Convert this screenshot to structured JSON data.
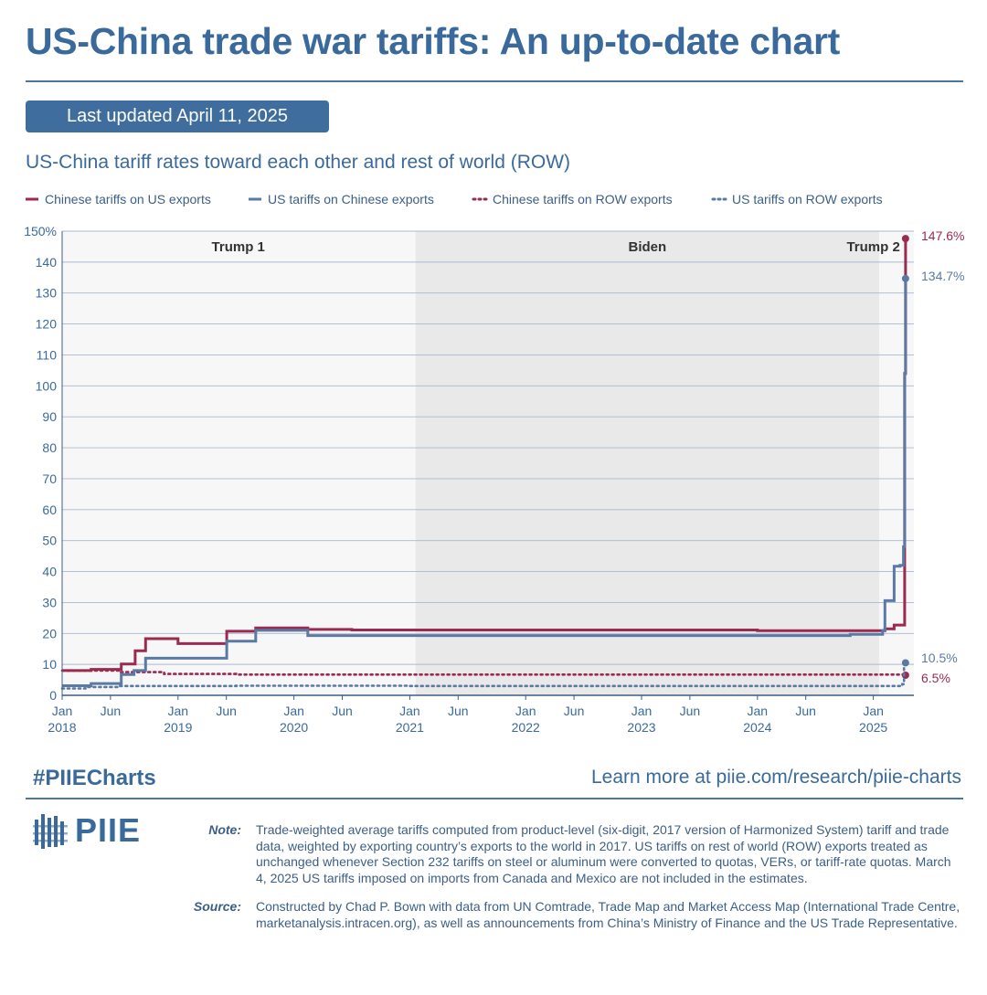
{
  "header": {
    "title": "US-China trade war tariffs: An up-to-date chart",
    "updated": "Last updated April 11, 2025",
    "subtitle": "US-China tariff rates toward each other and rest of world (ROW)"
  },
  "colors": {
    "cn_us": "#9b2a50",
    "us_cn": "#5a7aa4",
    "grid": "#a9b9d0",
    "shade": "#e9e9e9",
    "text": "#3a6a9b"
  },
  "chart_data": {
    "type": "line",
    "title": "US-China tariff rates toward each other and rest of world (ROW)",
    "ylim": [
      0,
      150
    ],
    "xlim": [
      "2018-01",
      "2025-04-11"
    ],
    "y_ticks": [
      {
        "value": 0,
        "label": "0"
      },
      {
        "value": 10,
        "label": "10"
      },
      {
        "value": 20,
        "label": "20"
      },
      {
        "value": 30,
        "label": "30"
      },
      {
        "value": 40,
        "label": "40"
      },
      {
        "value": 50,
        "label": "50"
      },
      {
        "value": 60,
        "label": "60"
      },
      {
        "value": 70,
        "label": "70"
      },
      {
        "value": 80,
        "label": "80"
      },
      {
        "value": 90,
        "label": "90"
      },
      {
        "value": 100,
        "label": "100"
      },
      {
        "value": 110,
        "label": "110"
      },
      {
        "value": 120,
        "label": "120"
      },
      {
        "value": 130,
        "label": "130"
      },
      {
        "value": 140,
        "label": "140"
      },
      {
        "value": 150,
        "label": "150%"
      }
    ],
    "x_ticks": [
      {
        "t": 2018.0,
        "label": "Jan",
        "year": "2018"
      },
      {
        "t": 2018.417,
        "label": "Jun"
      },
      {
        "t": 2019.0,
        "label": "Jan",
        "year": "2019"
      },
      {
        "t": 2019.417,
        "label": "Jun"
      },
      {
        "t": 2020.0,
        "label": "Jan",
        "year": "2020"
      },
      {
        "t": 2020.417,
        "label": "Jun"
      },
      {
        "t": 2021.0,
        "label": "Jan",
        "year": "2021"
      },
      {
        "t": 2021.417,
        "label": "Jun"
      },
      {
        "t": 2022.0,
        "label": "Jan",
        "year": "2022"
      },
      {
        "t": 2022.417,
        "label": "Jun"
      },
      {
        "t": 2023.0,
        "label": "Jan",
        "year": "2023"
      },
      {
        "t": 2023.417,
        "label": "Jun"
      },
      {
        "t": 2024.0,
        "label": "Jan",
        "year": "2024"
      },
      {
        "t": 2024.417,
        "label": "Jun"
      },
      {
        "t": 2025.0,
        "label": "Jan",
        "year": "2025"
      }
    ],
    "periods": [
      {
        "name": "Trump 1",
        "start": 2018.0,
        "end": 2021.05,
        "shaded": false
      },
      {
        "name": "Biden",
        "start": 2021.05,
        "end": 2025.05,
        "shaded": true
      },
      {
        "name": "Trump 2",
        "start": 2025.05,
        "end": 2025.28,
        "shaded": false
      }
    ],
    "series": [
      {
        "name": "Chinese tariffs on US exports",
        "color_key": "cn_us",
        "style": "solid",
        "end_label": "147.6%",
        "points": [
          [
            2018.0,
            8.0
          ],
          [
            2018.25,
            8.4
          ],
          [
            2018.51,
            10.1
          ],
          [
            2018.63,
            14.4
          ],
          [
            2018.72,
            18.3
          ],
          [
            2019.0,
            16.7
          ],
          [
            2019.42,
            20.7
          ],
          [
            2019.67,
            21.8
          ],
          [
            2020.12,
            21.3
          ],
          [
            2020.5,
            21.1
          ],
          [
            2024.0,
            20.9
          ],
          [
            2025.0,
            20.9
          ],
          [
            2025.1,
            21.5
          ],
          [
            2025.18,
            22.7
          ],
          [
            2025.27,
            104.0
          ],
          [
            2025.278,
            147.6
          ]
        ]
      },
      {
        "name": "US tariffs on Chinese exports",
        "color_key": "us_cn",
        "style": "solid",
        "end_label": "134.7%",
        "points": [
          [
            2018.0,
            3.1
          ],
          [
            2018.25,
            3.8
          ],
          [
            2018.51,
            6.7
          ],
          [
            2018.62,
            8.0
          ],
          [
            2018.72,
            12.0
          ],
          [
            2019.42,
            17.5
          ],
          [
            2019.67,
            21.0
          ],
          [
            2020.12,
            19.3
          ],
          [
            2024.75,
            19.3
          ],
          [
            2024.8,
            19.7
          ],
          [
            2025.08,
            20.9
          ],
          [
            2025.1,
            30.6
          ],
          [
            2025.18,
            41.7
          ],
          [
            2025.23,
            42.0
          ],
          [
            2025.26,
            48.0
          ],
          [
            2025.27,
            104.0
          ],
          [
            2025.278,
            134.7
          ]
        ]
      },
      {
        "name": "Chinese tariffs on ROW exports",
        "color_key": "cn_us",
        "style": "dotted",
        "end_label": "6.5%",
        "points": [
          [
            2018.0,
            8.0
          ],
          [
            2018.5,
            7.5
          ],
          [
            2018.88,
            6.9
          ],
          [
            2019.5,
            6.7
          ],
          [
            2025.278,
            6.5
          ]
        ]
      },
      {
        "name": "US tariffs on ROW exports",
        "color_key": "us_cn",
        "style": "dotted",
        "end_label": "10.5%",
        "points": [
          [
            2018.0,
            2.2
          ],
          [
            2018.2,
            2.7
          ],
          [
            2018.5,
            3.0
          ],
          [
            2019.5,
            3.1
          ],
          [
            2021.0,
            3.0
          ],
          [
            2025.0,
            3.0
          ],
          [
            2025.25,
            3.6
          ],
          [
            2025.265,
            10.5
          ],
          [
            2025.278,
            10.5
          ]
        ]
      }
    ]
  },
  "footer": {
    "hashtag": "#PIIECharts",
    "learn_more": "Learn more at piie.com/research/piie-charts",
    "logo_text": "PIIE",
    "note_label": "Note:",
    "note_text": "Trade-weighted average tariffs computed from product-level (six-digit, 2017 version of Harmonized System) tariff and trade data, weighted by exporting country’s exports to the world in 2017. US tariffs on rest of world (ROW) exports treated as unchanged whenever Section 232 tariffs on steel or aluminum were converted to quotas, VERs, or tariff-rate quotas. March 4, 2025 US tariffs imposed on imports from Canada and Mexico are not included in the estimates.",
    "source_label": "Source:",
    "source_text": "Constructed by Chad P. Bown with data from UN Comtrade, Trade Map and Market Access Map (International Trade Centre, marketanalysis.intracen.org), as well as announcements from China’s Ministry of Finance and the US Trade Representative."
  }
}
